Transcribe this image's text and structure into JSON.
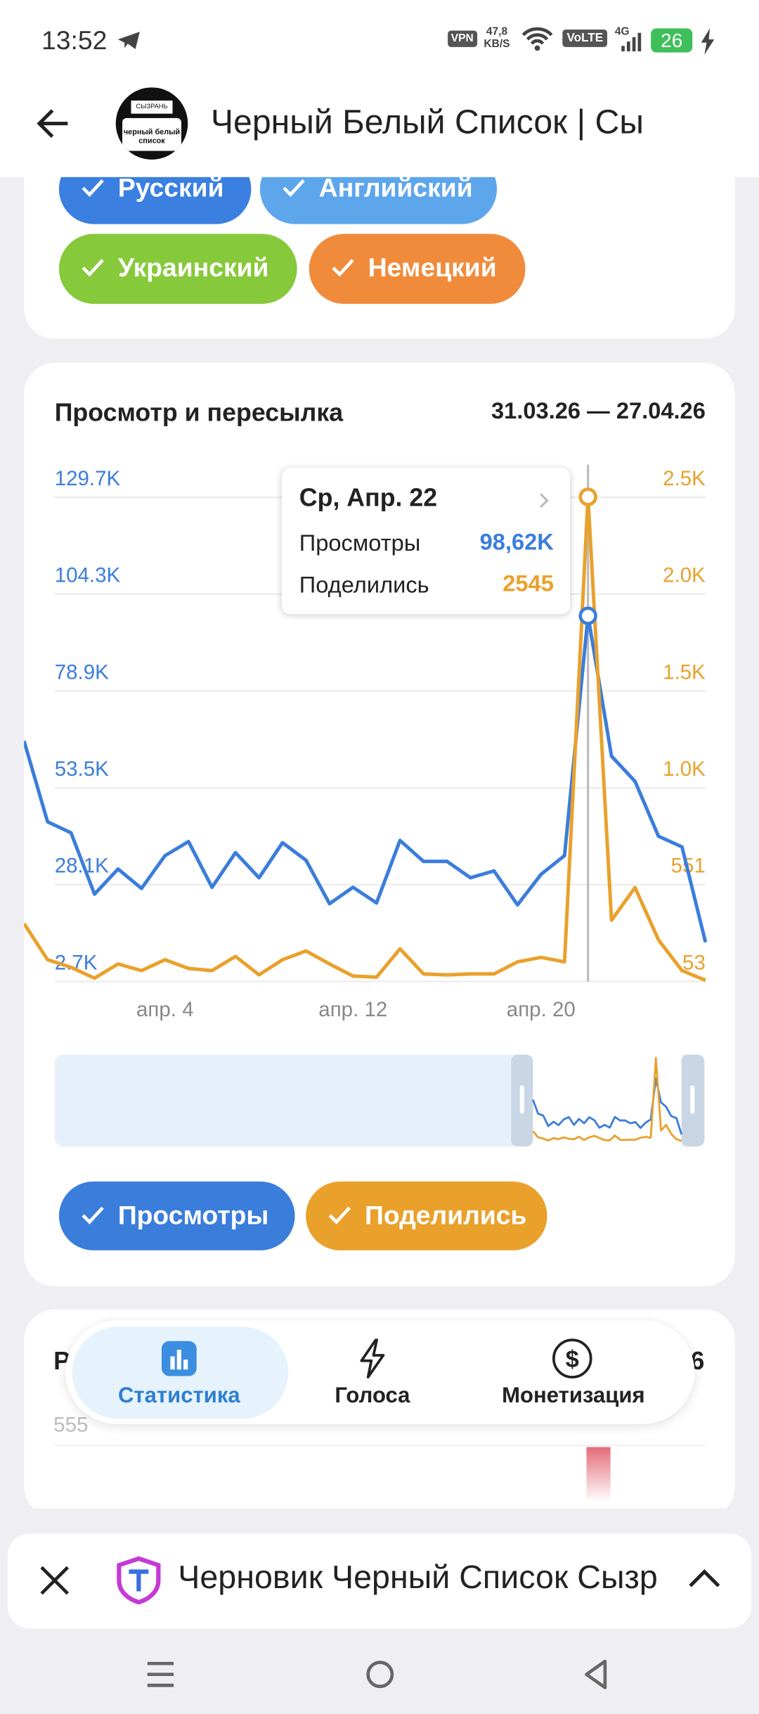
{
  "status_bar": {
    "time": "13:52",
    "vpn": "VPN",
    "speed": "47,8",
    "speed_unit": "KB/S",
    "volte": "VoLTE",
    "network": "4G",
    "battery": "26"
  },
  "header": {
    "avatar_top": "СЫЗРАНЬ",
    "avatar_bottom": "черный белый список",
    "title": "Черный Белый Список | Сы"
  },
  "language_chips": [
    "Русский",
    "Английский",
    "Украинский",
    "Немецкий"
  ],
  "chart_data": {
    "type": "line",
    "title": "Просмотр и пересылка",
    "subtitle": "31.03.26 — 27.04.26",
    "categories": [
      null,
      null,
      null,
      null,
      null,
      null,
      "апр. 4",
      null,
      null,
      null,
      null,
      null,
      null,
      null,
      "апр. 12",
      null,
      null,
      null,
      null,
      null,
      null,
      null,
      "апр. 20",
      null,
      null,
      null,
      null,
      null,
      null,
      null
    ],
    "series": [
      {
        "name": "Просмотры",
        "color": "#3b7ddb",
        "values": [
          65800,
          44600,
          41700,
          25600,
          32200,
          27100,
          35700,
          39400,
          27400,
          36500,
          29900,
          39100,
          34500,
          23100,
          27400,
          23300,
          39700,
          34200,
          34200,
          29900,
          31700,
          22800,
          30800,
          35700,
          98620,
          61800,
          55200,
          40800,
          38000,
          13000
        ]
      },
      {
        "name": "Поделились",
        "color": "#e9a12c",
        "axis": "y2",
        "values": [
          351,
          165,
          126,
          70,
          143,
          109,
          165,
          120,
          109,
          182,
          87,
          165,
          210,
          143,
          81,
          75,
          221,
          92,
          87,
          92,
          92,
          154,
          177,
          154,
          2545,
          368,
          536,
          267,
          109,
          59
        ]
      }
    ],
    "ylim": [
      2700,
      129700
    ],
    "yticks": [
      {
        "value": 2700,
        "label": "2.7K"
      },
      {
        "value": 28100,
        "label": "28.1K"
      },
      {
        "value": 53500,
        "label": "53.5K"
      },
      {
        "value": 78900,
        "label": "78.9K"
      },
      {
        "value": 104300,
        "label": "104.3K"
      },
      {
        "value": 129700,
        "label": "129.7K"
      }
    ],
    "y2lim": [
      53,
      2543
    ],
    "y2ticks": [
      53,
      551,
      {
        "value": 1049,
        "label": "1.0K"
      },
      {
        "value": 1547,
        "label": "1.5K"
      },
      {
        "value": 2045,
        "label": "2.0K"
      },
      {
        "value": 2543,
        "label": "2.5K"
      }
    ],
    "grid": true,
    "tooltip": {
      "title": "Ср, Апр. 22",
      "rows": [
        {
          "label": "Просмотры",
          "value": "98,62K"
        },
        {
          "label": "Поделились",
          "value": "2545"
        }
      ]
    }
  },
  "next_card": {
    "title_fragment": "Р",
    "date_fragment": "6",
    "tick": "555"
  },
  "bottom_nav": [
    "Статистика",
    "Голоса",
    "Монетизация"
  ],
  "draft_bar": {
    "text": "Черновик Черный Список Сызр"
  }
}
